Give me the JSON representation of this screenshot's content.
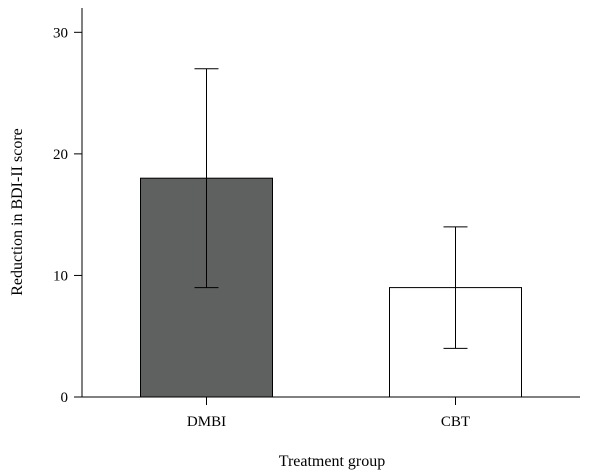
{
  "chart_data": {
    "type": "bar",
    "title": "",
    "xlabel": "Treatment group",
    "ylabel": "Reduction in BDI-II score",
    "categories": [
      "DMBI",
      "CBT"
    ],
    "values": [
      18,
      9
    ],
    "error_bars": [
      {
        "low": 9,
        "high": 27
      },
      {
        "low": 4,
        "high": 14
      }
    ],
    "bar_fills": [
      "#5f6060",
      "#ffffff"
    ],
    "bar_stroke": "#000000",
    "ylim": [
      0,
      32
    ],
    "yticks": [
      0,
      10,
      20,
      30
    ],
    "ytick_labels": [
      "0",
      "10",
      "20",
      "30"
    ],
    "grid": false,
    "legend": "none"
  }
}
